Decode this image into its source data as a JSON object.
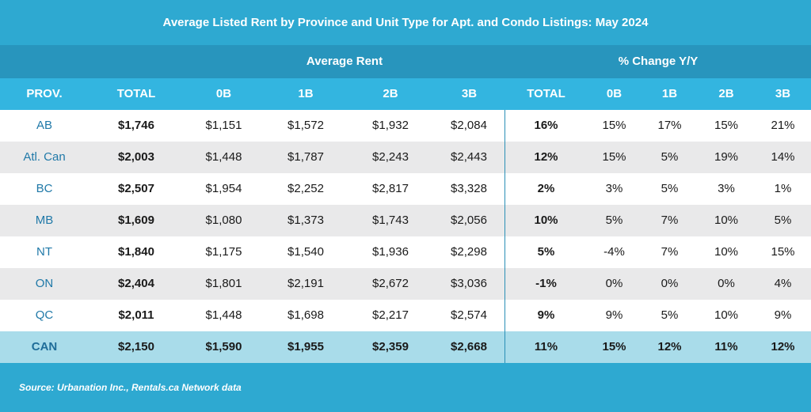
{
  "chart_data": {
    "type": "table",
    "title": "Average Listed Rent by Province and Unit Type for Apt. and Condo Listings: May 2024",
    "group_headers": [
      "Average Rent",
      "% Change Y/Y"
    ],
    "columns": [
      "PROV.",
      "TOTAL",
      "0B",
      "1B",
      "2B",
      "3B",
      "TOTAL",
      "0B",
      "1B",
      "2B",
      "3B"
    ],
    "rows": [
      {
        "prov": "AB",
        "total": "$1,746",
        "r0": "$1,151",
        "r1": "$1,572",
        "r2": "$1,932",
        "r3": "$2,084",
        "pt": "16%",
        "p0": "15%",
        "p1": "17%",
        "p2": "15%",
        "p3": "21%"
      },
      {
        "prov": "Atl. Can",
        "total": "$2,003",
        "r0": "$1,448",
        "r1": "$1,787",
        "r2": "$2,243",
        "r3": "$2,443",
        "pt": "12%",
        "p0": "15%",
        "p1": "5%",
        "p2": "19%",
        "p3": "14%"
      },
      {
        "prov": "BC",
        "total": "$2,507",
        "r0": "$1,954",
        "r1": "$2,252",
        "r2": "$2,817",
        "r3": "$3,328",
        "pt": "2%",
        "p0": "3%",
        "p1": "5%",
        "p2": "3%",
        "p3": "1%"
      },
      {
        "prov": "MB",
        "total": "$1,609",
        "r0": "$1,080",
        "r1": "$1,373",
        "r2": "$1,743",
        "r3": "$2,056",
        "pt": "10%",
        "p0": "5%",
        "p1": "7%",
        "p2": "10%",
        "p3": "5%"
      },
      {
        "prov": "NT",
        "total": "$1,840",
        "r0": "$1,175",
        "r1": "$1,540",
        "r2": "$1,936",
        "r3": "$2,298",
        "pt": "5%",
        "p0": "-4%",
        "p1": "7%",
        "p2": "10%",
        "p3": "15%"
      },
      {
        "prov": "ON",
        "total": "$2,404",
        "r0": "$1,801",
        "r1": "$2,191",
        "r2": "$2,672",
        "r3": "$3,036",
        "pt": "-1%",
        "p0": "0%",
        "p1": "0%",
        "p2": "0%",
        "p3": "4%"
      },
      {
        "prov": "QC",
        "total": "$2,011",
        "r0": "$1,448",
        "r1": "$1,698",
        "r2": "$2,217",
        "r3": "$2,574",
        "pt": "9%",
        "p0": "9%",
        "p1": "5%",
        "p2": "10%",
        "p3": "9%"
      },
      {
        "prov": "CAN",
        "total": "$2,150",
        "r0": "$1,590",
        "r1": "$1,955",
        "r2": "$2,359",
        "r3": "$2,668",
        "pt": "11%",
        "p0": "15%",
        "p1": "12%",
        "p2": "11%",
        "p3": "12%"
      }
    ],
    "source": "Source: Urbanation Inc., Rentals.ca Network data"
  },
  "colors": {
    "banner": "#2ea9d1",
    "group_header": "#2895bd",
    "column_header": "#33b5e0",
    "alt_row": "#e9e9ea",
    "total_row": "#a9dcea",
    "province_text": "#2079a8"
  }
}
